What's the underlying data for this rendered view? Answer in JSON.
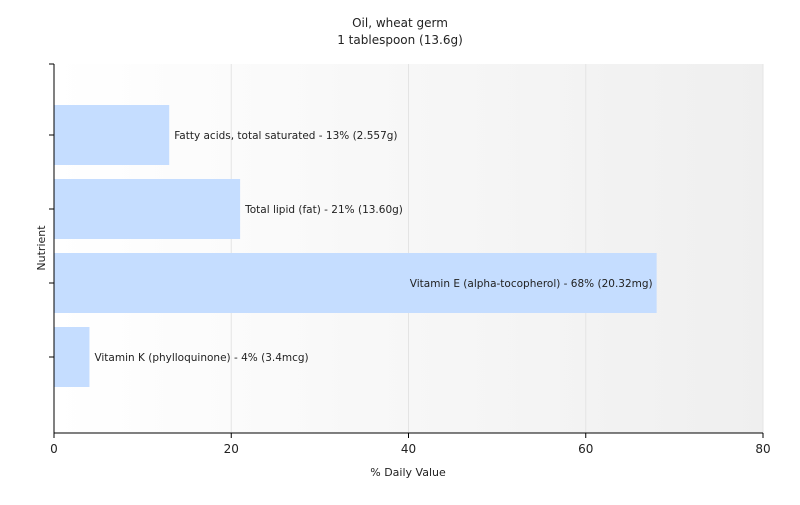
{
  "chart_data": {
    "type": "bar",
    "orientation": "horizontal",
    "title": "Oil, wheat germ",
    "subtitle": "1 tablespoon (13.6g)",
    "xlabel": "% Daily Value",
    "ylabel": "Nutrient",
    "xlim": [
      0,
      80
    ],
    "xticks": [
      "0",
      "20",
      "40",
      "60",
      "80"
    ],
    "grid": true,
    "categories": [
      "Fatty acids, total saturated",
      "Total lipid (fat)",
      "Vitamin E (alpha-tocopherol)",
      "Vitamin K (phylloquinone)"
    ],
    "values": [
      13,
      21,
      68,
      4
    ],
    "data_labels": [
      "Fatty acids, total saturated - 13% (2.557g)",
      "Total lipid (fat) - 21% (13.60g)",
      "Vitamin E (alpha-tocopherol) - 68% (20.32mg)",
      "Vitamin K (phylloquinone) - 4% (3.4mcg)"
    ],
    "colors": {
      "bar": "#c5ddff",
      "plot_background": "#f7f7f7",
      "grid": "#e4e4e4",
      "axis": "#000000"
    }
  }
}
